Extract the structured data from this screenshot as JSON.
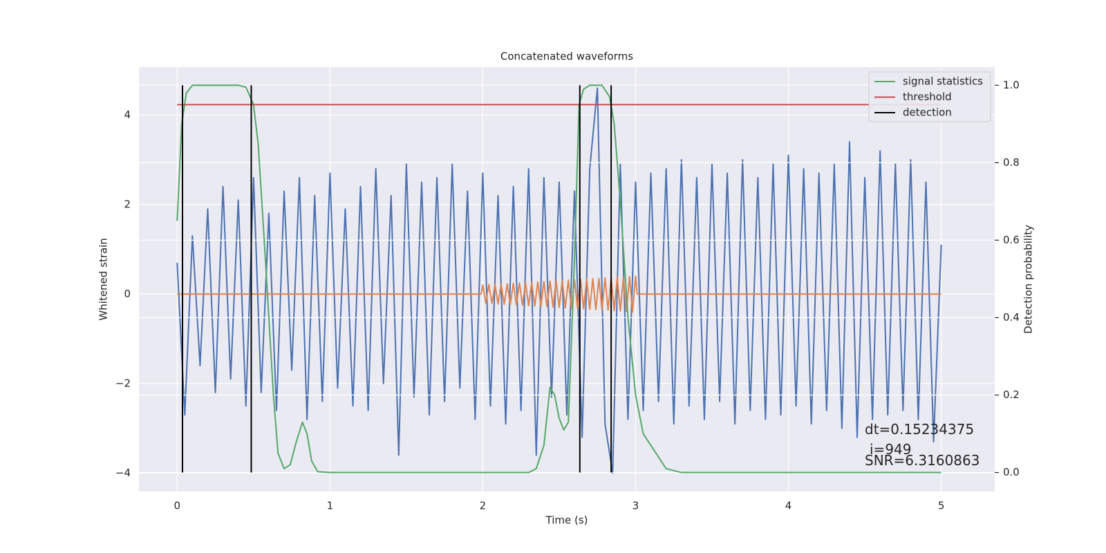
{
  "chart_data": {
    "type": "line",
    "title": "Concatenated waveforms",
    "x_label": "Time (s)",
    "y_label": "Whitened strain",
    "y2_label": "Detection probability",
    "xlim": [
      -0.25,
      5.35
    ],
    "ylim": [
      -4.41,
      5.07
    ],
    "y2lim": [
      -0.049,
      1.047
    ],
    "xticks": [
      0,
      1,
      2,
      3,
      4,
      5
    ],
    "yticks": [
      {
        "value": -4,
        "label": "−4"
      },
      {
        "value": -2,
        "label": "−2"
      },
      0,
      2,
      4
    ],
    "y2ticks": [
      {
        "value": 0,
        "label": "0.0"
      },
      0.2,
      0.4,
      0.6,
      0.8,
      {
        "value": 1,
        "label": "1.0"
      }
    ],
    "grid": true,
    "legend": "upper right",
    "series": [
      {
        "color": "#4c72b0",
        "x": [
          0,
          0.05,
          0.1,
          0.15,
          0.2,
          0.25,
          0.3,
          0.35,
          0.4,
          0.45,
          0.5,
          0.55,
          0.6,
          0.65,
          0.7,
          0.75,
          0.8,
          0.85,
          0.9,
          0.95,
          1,
          1.05,
          1.1,
          1.15,
          1.2,
          1.25,
          1.3,
          1.35,
          1.4,
          1.45,
          1.5,
          1.55,
          1.6,
          1.65,
          1.7,
          1.75,
          1.8,
          1.85,
          1.9,
          1.95,
          2,
          2.05,
          2.1,
          2.15,
          2.2,
          2.25,
          2.3,
          2.35,
          2.4,
          2.45,
          2.5,
          2.55,
          2.6,
          2.65,
          2.7,
          2.75,
          2.8,
          2.85,
          2.9,
          2.95,
          3,
          3.05,
          3.1,
          3.15,
          3.2,
          3.25,
          3.3,
          3.35,
          3.4,
          3.45,
          3.5,
          3.55,
          3.6,
          3.65,
          3.7,
          3.75,
          3.8,
          3.85,
          3.9,
          3.95,
          4,
          4.05,
          4.1,
          4.15,
          4.2,
          4.25,
          4.3,
          4.35,
          4.4,
          4.45,
          4.5,
          4.55,
          4.6,
          4.65,
          4.7,
          4.75,
          4.8,
          4.85,
          4.9,
          4.95,
          5
        ],
        "values": [
          0.7,
          -2.7,
          1.3,
          -1.6,
          1.9,
          -2.2,
          2.4,
          -1.9,
          2.1,
          -2.5,
          2.6,
          -2.2,
          1.8,
          -2.6,
          2.3,
          -1.7,
          2.6,
          -2.8,
          2.2,
          -2.4,
          2.7,
          -2.1,
          1.9,
          -2.5,
          2.4,
          -2.6,
          2.8,
          -2.0,
          2.2,
          -3.6,
          2.9,
          -2.3,
          2.5,
          -2.7,
          2.6,
          -2.4,
          2.9,
          -2.1,
          2.3,
          -2.8,
          2.7,
          -2.5,
          2.2,
          -2.9,
          2.4,
          -2.6,
          2.8,
          -3.6,
          2.6,
          -2.3,
          2.5,
          -2.7,
          2.3,
          -3.2,
          2.8,
          4.6,
          -2.9,
          -4.0,
          2.9,
          -2.8,
          2.5,
          -2.6,
          2.7,
          -2.4,
          2.8,
          -2.9,
          3.0,
          -2.5,
          2.6,
          -2.8,
          2.9,
          -2.4,
          2.7,
          -2.9,
          3.0,
          -2.6,
          2.6,
          -2.8,
          2.9,
          -2.7,
          3.1,
          -2.5,
          2.8,
          -2.9,
          2.7,
          -2.6,
          2.9,
          -3.0,
          3.4,
          -3.2,
          2.6,
          -2.8,
          3.2,
          -2.7,
          2.9,
          -2.6,
          3.0,
          -2.8,
          2.5,
          -3.3,
          1.1
        ]
      },
      {
        "color": "#dd8452",
        "x": [
          0,
          1.99,
          2.0,
          2.02,
          2.04,
          2.06,
          2.08,
          2.1,
          2.12,
          2.14,
          2.16,
          2.18,
          2.2,
          2.22,
          2.24,
          2.26,
          2.28,
          2.3,
          2.32,
          2.34,
          2.36,
          2.38,
          2.4,
          2.42,
          2.44,
          2.46,
          2.48,
          2.5,
          2.52,
          2.54,
          2.56,
          2.58,
          2.6,
          2.62,
          2.64,
          2.66,
          2.68,
          2.7,
          2.72,
          2.74,
          2.76,
          2.78,
          2.8,
          2.82,
          2.84,
          2.86,
          2.88,
          2.9,
          2.92,
          2.94,
          2.96,
          2.98,
          3.0,
          3.01,
          5
        ],
        "values": [
          0,
          0,
          0.2,
          -0.2,
          0.21,
          -0.21,
          0.22,
          -0.22,
          0.22,
          -0.23,
          0.23,
          -0.24,
          0.24,
          -0.24,
          0.25,
          -0.25,
          0.26,
          -0.26,
          0.26,
          -0.27,
          0.27,
          -0.28,
          0.28,
          -0.28,
          0.29,
          -0.29,
          0.3,
          -0.3,
          0.3,
          -0.31,
          0.31,
          -0.32,
          0.32,
          -0.32,
          0.33,
          -0.33,
          0.34,
          -0.34,
          0.34,
          -0.35,
          0.35,
          -0.36,
          0.36,
          -0.36,
          0.37,
          -0.37,
          0.38,
          -0.38,
          0.38,
          -0.39,
          0.39,
          -0.4,
          0.4,
          0,
          0
        ]
      },
      {
        "name": "signal statistics",
        "color": "#55a868",
        "axis": "y2",
        "x": [
          0,
          0.03,
          0.06,
          0.1,
          0.2,
          0.4,
          0.45,
          0.5,
          0.53,
          0.57,
          0.6,
          0.63,
          0.66,
          0.7,
          0.74,
          0.78,
          0.82,
          0.85,
          0.88,
          0.92,
          1.0,
          2.0,
          2.3,
          2.35,
          2.4,
          2.44,
          2.47,
          2.5,
          2.53,
          2.56,
          2.6,
          2.63,
          2.66,
          2.7,
          2.78,
          2.83,
          2.86,
          2.9,
          2.95,
          3.0,
          3.05,
          3.1,
          3.15,
          3.2,
          3.3,
          5.0
        ],
        "values": [
          0.65,
          0.9,
          0.98,
          1.0,
          1.0,
          1.0,
          0.995,
          0.95,
          0.85,
          0.6,
          0.4,
          0.2,
          0.05,
          0.01,
          0.02,
          0.08,
          0.13,
          0.1,
          0.03,
          0.002,
          0.0,
          0.0,
          0.0,
          0.01,
          0.07,
          0.22,
          0.2,
          0.14,
          0.11,
          0.13,
          0.55,
          0.95,
          0.99,
          1.0,
          1.0,
          0.97,
          0.9,
          0.7,
          0.4,
          0.2,
          0.1,
          0.07,
          0.04,
          0.01,
          0.0,
          0.0
        ]
      },
      {
        "name": "threshold",
        "color": "#c44e52",
        "axis": "y2",
        "x": [
          0,
          5
        ],
        "values": [
          0.95,
          0.95
        ]
      },
      {
        "name": "detection",
        "color": "#000000",
        "axis": "y2",
        "type": "vline",
        "x": [
          0.035,
          0.485,
          2.635,
          2.84
        ],
        "ymin": 0,
        "ymax": 1
      }
    ],
    "annotations": [
      "dt=0.15234375",
      "i=949",
      "SNR=6.3160863"
    ]
  }
}
